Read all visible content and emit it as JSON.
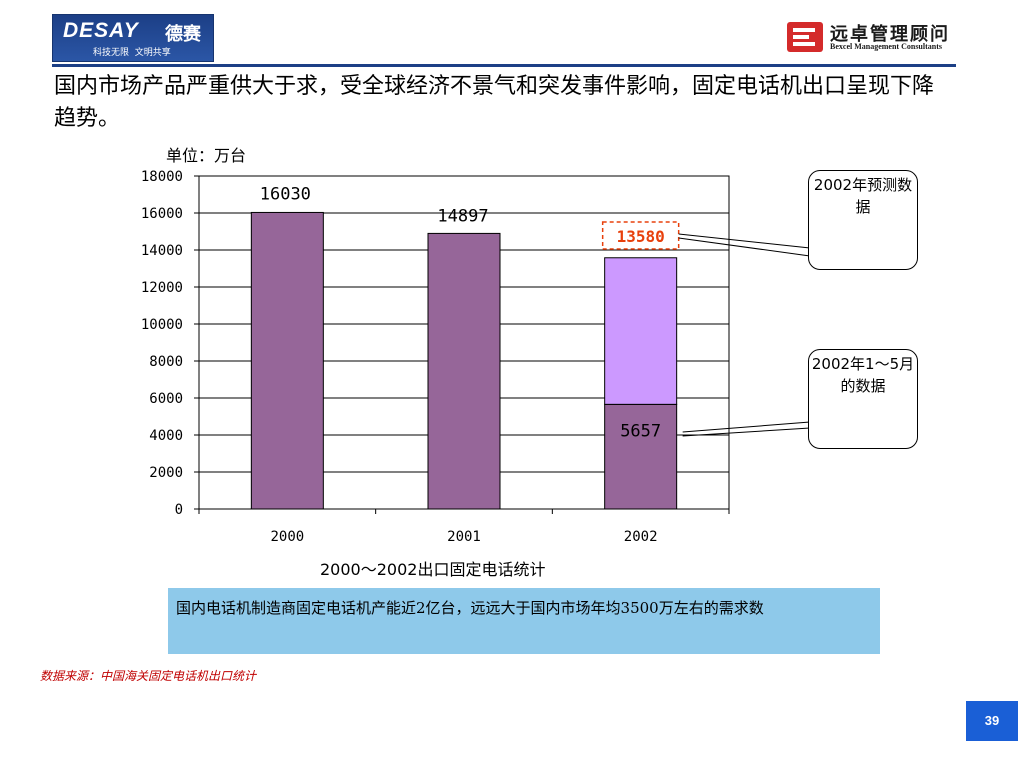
{
  "header": {
    "left_logo": {
      "brand": "DESAY",
      "brand_cn": "德赛",
      "slogan": "科技无限  文明共享"
    },
    "right_logo": {
      "name_cn": "远卓管理顾问",
      "name_en": "Bexcel Management Consultants"
    },
    "accent_color": "#1c3f86"
  },
  "headline": "国内市场产品严重供大于求，受全球经济不景气和突发事件影响，固定电话机出口呈现下降趋势。",
  "unit_label": "单位：万台",
  "chart_data": {
    "type": "bar",
    "title": "",
    "caption": "2000～2002出口固定电话统计",
    "categories": [
      "2000",
      "2001",
      "2002"
    ],
    "series": [
      {
        "values": [
          16030,
          14897,
          5657
        ],
        "color": "#966699"
      },
      {
        "values": [
          null,
          null,
          7923
        ],
        "color": "#cc99ff"
      }
    ],
    "data_labels": [
      "16030",
      "14897",
      "5657"
    ],
    "forecast_label": "13580",
    "forecast_label_color": "#e8400c",
    "ylim": [
      0,
      18000
    ],
    "yticks": [
      0,
      2000,
      4000,
      6000,
      8000,
      10000,
      12000,
      14000,
      16000,
      18000
    ],
    "stacked": true,
    "grid": true
  },
  "callouts": {
    "forecast": "2002年预测数据",
    "ytd": "2002年1～5月的数据"
  },
  "summary": "国内电话机制造商固定电话机产能近2亿台，远远大于国内市场年均3500万左右的需求数",
  "source_note": "数据来源：中国海关固定电话机出口统计",
  "page_number": "39"
}
